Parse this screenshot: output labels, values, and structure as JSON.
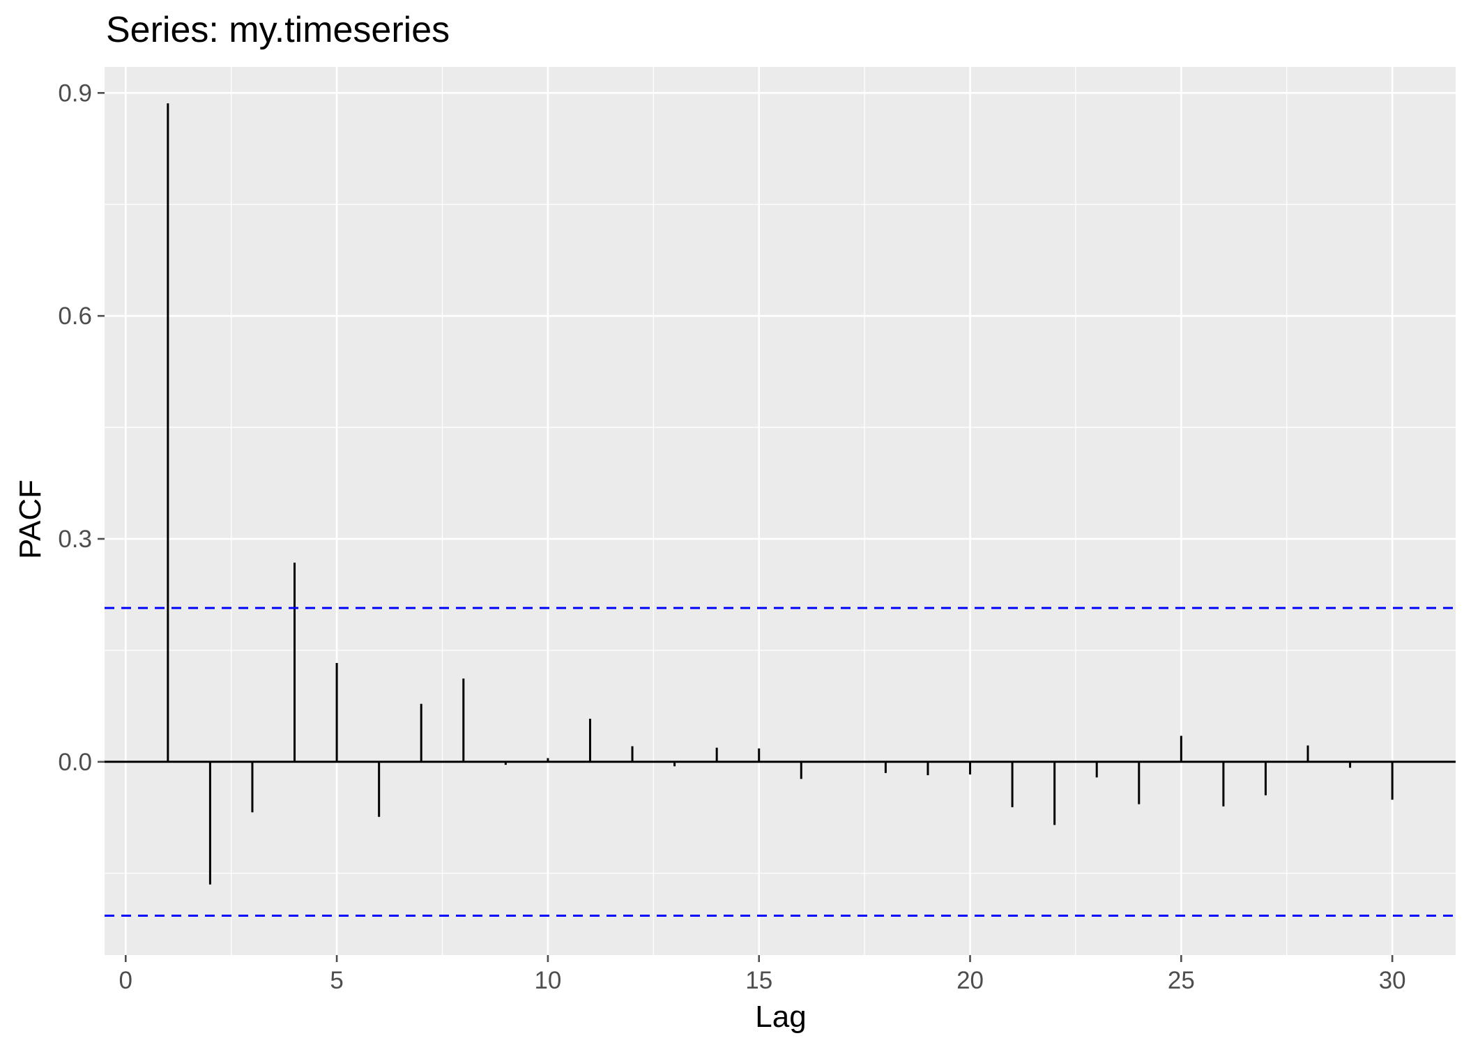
{
  "chart_data": {
    "type": "bar",
    "subtype": "pacf-lollipop",
    "title": "Series: my.timeseries",
    "xlabel": "Lag",
    "ylabel": "PACF",
    "xlim": [
      -0.5,
      31.5
    ],
    "ylim": [
      -0.26,
      0.935
    ],
    "x_ticks": [
      0,
      5,
      10,
      15,
      20,
      25,
      30
    ],
    "x_tick_labels": [
      "0",
      "5",
      "10",
      "15",
      "20",
      "25",
      "30"
    ],
    "y_ticks": [
      0.0,
      0.3,
      0.6,
      0.9
    ],
    "y_tick_labels": [
      "0.0",
      "0.3",
      "0.6",
      "0.9"
    ],
    "confidence_bounds": [
      0.207,
      -0.207
    ],
    "grid": true,
    "series": [
      {
        "name": "PACF",
        "lags": [
          1,
          2,
          3,
          4,
          5,
          6,
          7,
          8,
          9,
          10,
          11,
          12,
          13,
          14,
          15,
          16,
          17,
          18,
          19,
          20,
          21,
          22,
          23,
          24,
          25,
          26,
          27,
          28,
          29,
          30
        ],
        "values": [
          0.886,
          -0.165,
          -0.068,
          0.268,
          0.133,
          -0.074,
          0.078,
          0.112,
          -0.004,
          0.005,
          0.058,
          0.021,
          -0.006,
          0.019,
          0.018,
          -0.023,
          -0.001,
          -0.015,
          -0.018,
          -0.017,
          -0.061,
          -0.085,
          -0.021,
          -0.057,
          0.035,
          -0.06,
          -0.045,
          0.022,
          -0.008,
          -0.051
        ]
      }
    ],
    "colors": {
      "panel": "#ebebeb",
      "grid": "#ffffff",
      "bars": "#000000",
      "bounds": "#0000ff",
      "ticks": "#4d4d4d"
    }
  }
}
